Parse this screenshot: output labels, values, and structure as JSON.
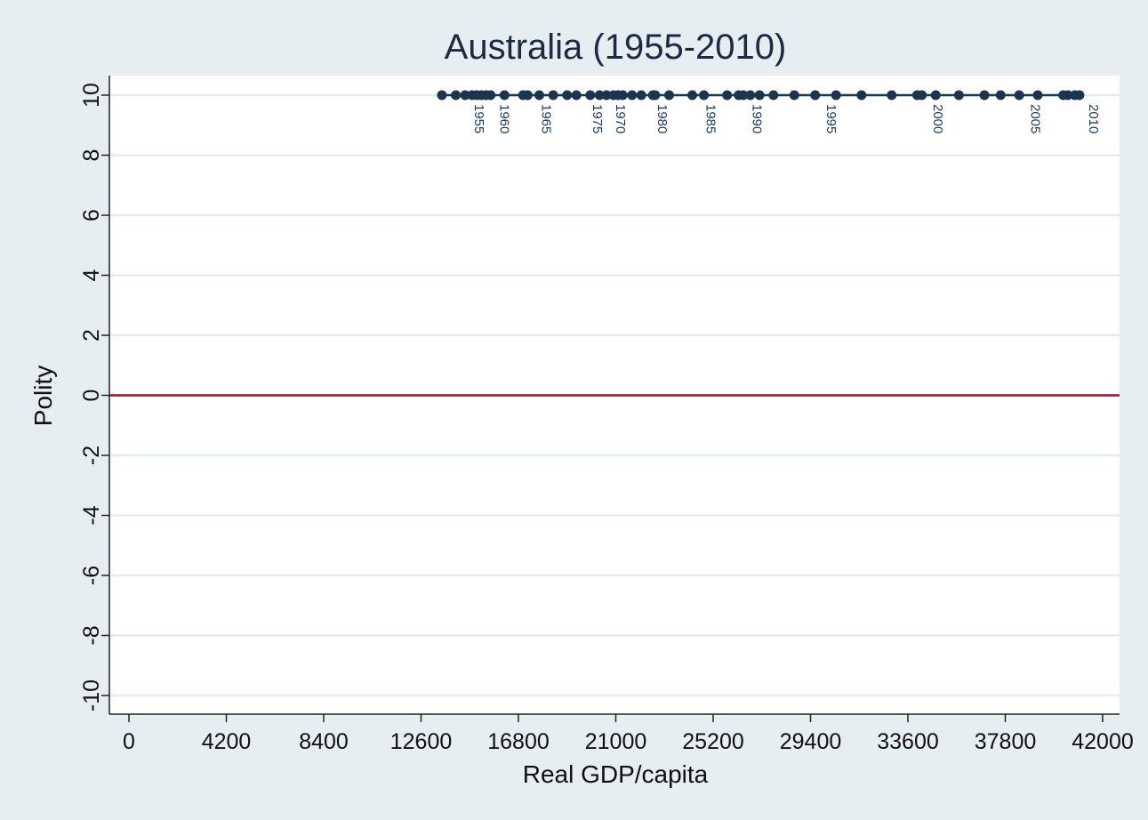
{
  "chart_data": {
    "type": "scatter",
    "title": "Australia (1955-2010)",
    "xlabel": "Real GDP/capita",
    "ylabel": "Polity",
    "xlim": [
      0,
      42000
    ],
    "ylim": [
      -10,
      10
    ],
    "x_ticks": [
      0,
      4200,
      8400,
      12600,
      16800,
      21000,
      25200,
      29400,
      33600,
      37800,
      42000
    ],
    "y_ticks": [
      10,
      8,
      6,
      4,
      2,
      0,
      -2,
      -4,
      -6,
      -8,
      -10
    ],
    "grid": true,
    "reference_line": {
      "y": 0,
      "color": "#a0132d"
    },
    "marker_color": "#1b3550",
    "series": [
      {
        "connected": true,
        "points": [
          {
            "x": 13500,
            "y": 10
          },
          {
            "x": 14100,
            "y": 10
          },
          {
            "x": 14500,
            "y": 10
          },
          {
            "x": 14800,
            "y": 10
          },
          {
            "x": 15000,
            "y": 10
          },
          {
            "x": 15200,
            "y": 10
          },
          {
            "x": 15400,
            "y": 10
          },
          {
            "x": 15600,
            "y": 10
          },
          {
            "x": 16200,
            "y": 10
          },
          {
            "x": 17000,
            "y": 10
          },
          {
            "x": 17200,
            "y": 10
          },
          {
            "x": 17700,
            "y": 10
          },
          {
            "x": 18300,
            "y": 10
          },
          {
            "x": 18900,
            "y": 10
          },
          {
            "x": 19300,
            "y": 10
          },
          {
            "x": 19900,
            "y": 10
          },
          {
            "x": 20300,
            "y": 10
          },
          {
            "x": 20600,
            "y": 10
          },
          {
            "x": 20900,
            "y": 10
          },
          {
            "x": 21100,
            "y": 10
          },
          {
            "x": 21300,
            "y": 10
          },
          {
            "x": 21700,
            "y": 10
          },
          {
            "x": 22100,
            "y": 10
          },
          {
            "x": 22600,
            "y": 10
          },
          {
            "x": 22700,
            "y": 10
          },
          {
            "x": 23300,
            "y": 10
          },
          {
            "x": 24300,
            "y": 10
          },
          {
            "x": 24800,
            "y": 10
          },
          {
            "x": 25800,
            "y": 10
          },
          {
            "x": 26300,
            "y": 10
          },
          {
            "x": 26500,
            "y": 10
          },
          {
            "x": 26800,
            "y": 10
          },
          {
            "x": 27200,
            "y": 10
          },
          {
            "x": 27800,
            "y": 10
          },
          {
            "x": 28700,
            "y": 10
          },
          {
            "x": 29600,
            "y": 10
          },
          {
            "x": 30500,
            "y": 10
          },
          {
            "x": 31600,
            "y": 10
          },
          {
            "x": 32900,
            "y": 10
          },
          {
            "x": 34000,
            "y": 10
          },
          {
            "x": 34200,
            "y": 10
          },
          {
            "x": 34800,
            "y": 10
          },
          {
            "x": 35800,
            "y": 10
          },
          {
            "x": 36900,
            "y": 10
          },
          {
            "x": 37600,
            "y": 10
          },
          {
            "x": 38400,
            "y": 10
          },
          {
            "x": 39200,
            "y": 10
          },
          {
            "x": 40300,
            "y": 10
          },
          {
            "x": 40500,
            "y": 10
          },
          {
            "x": 40800,
            "y": 10
          },
          {
            "x": 41000,
            "y": 10
          }
        ]
      }
    ],
    "point_labels": [
      {
        "text": "1955",
        "x": 14800,
        "y": 10
      },
      {
        "text": "1960",
        "x": 15900,
        "y": 10
      },
      {
        "text": "1965",
        "x": 17700,
        "y": 10
      },
      {
        "text": "1975",
        "x": 19900,
        "y": 10
      },
      {
        "text": "1970",
        "x": 20900,
        "y": 10
      },
      {
        "text": "1980",
        "x": 22700,
        "y": 10
      },
      {
        "text": "1985",
        "x": 24800,
        "y": 10
      },
      {
        "text": "1990",
        "x": 26800,
        "y": 10
      },
      {
        "text": "1995",
        "x": 30000,
        "y": 10
      },
      {
        "text": "2000",
        "x": 34600,
        "y": 10
      },
      {
        "text": "2005",
        "x": 38800,
        "y": 10
      },
      {
        "text": "2010",
        "x": 41300,
        "y": 10
      }
    ]
  }
}
